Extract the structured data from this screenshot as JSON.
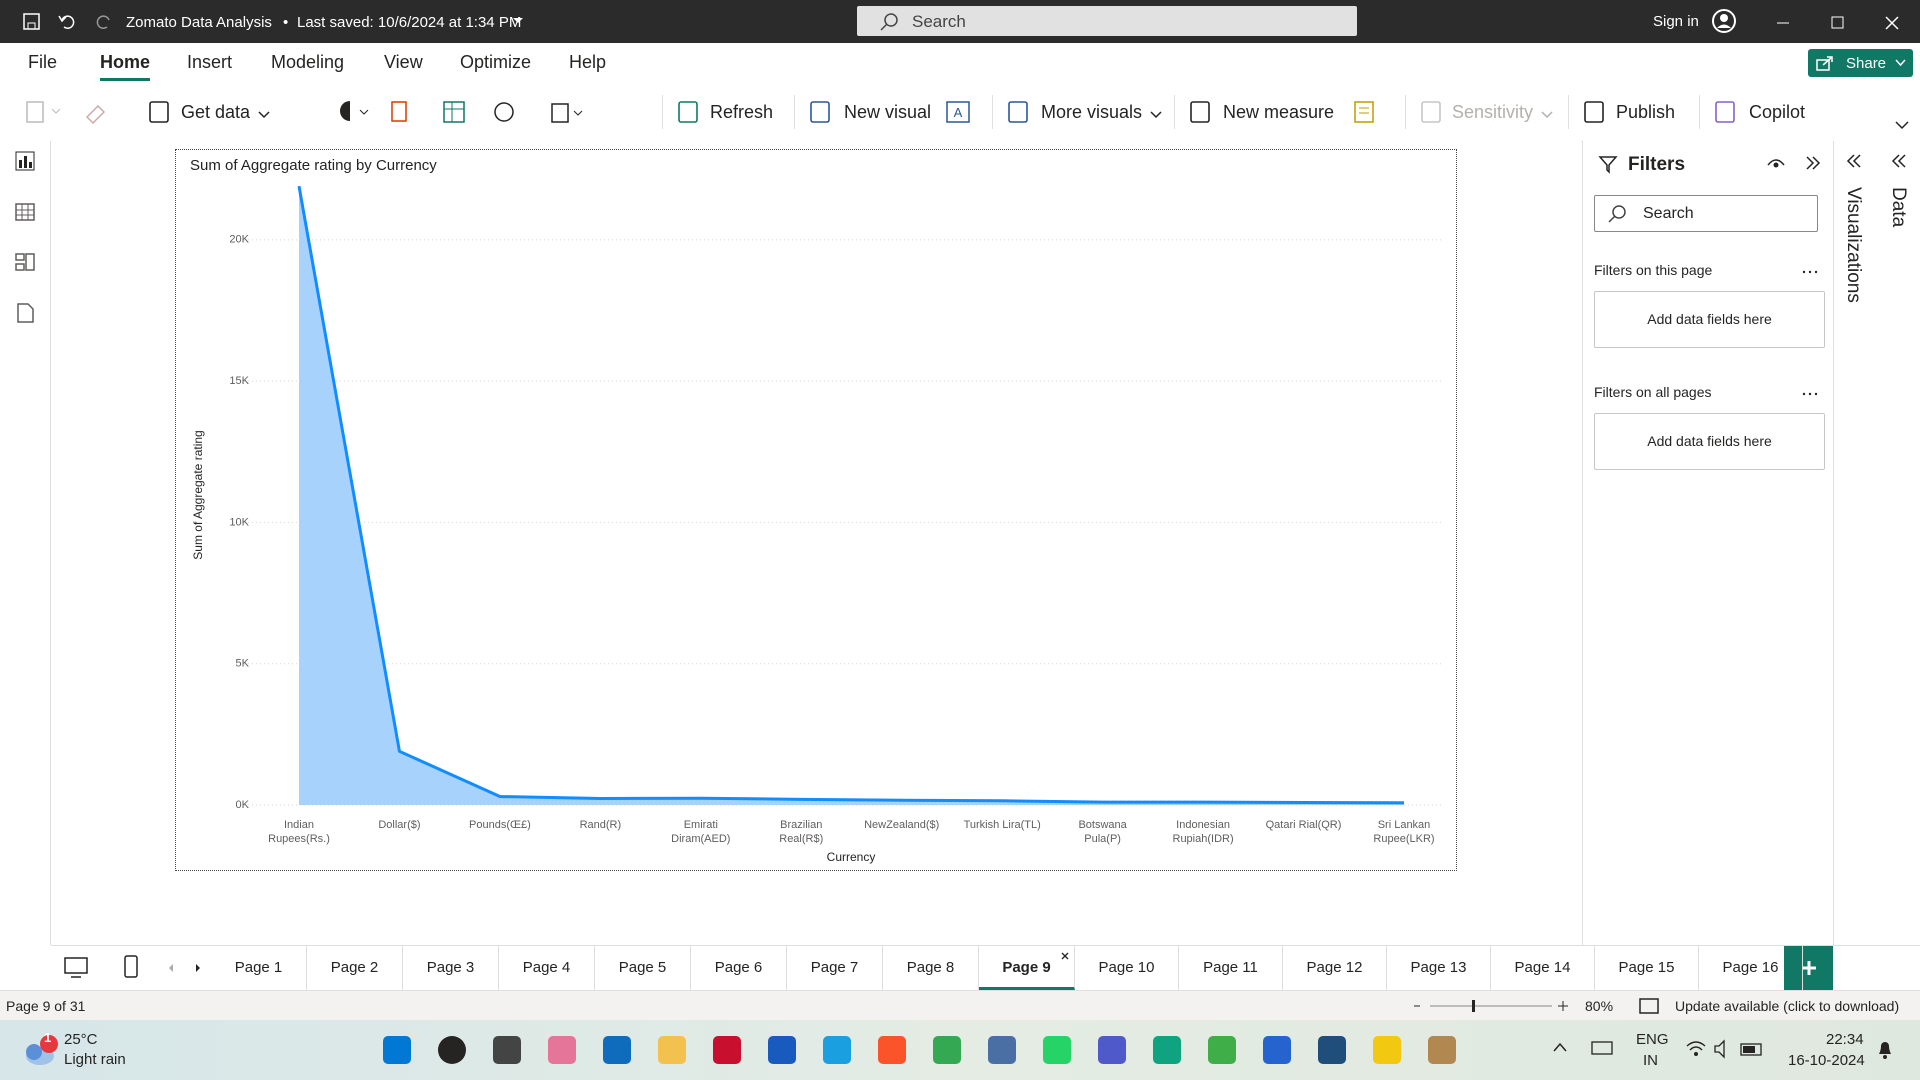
{
  "titlebar": {
    "file_name": "Zomato Data Analysis",
    "saved": "Last saved: 10/6/2024 at 1:34 PM",
    "search": "Search",
    "sign_in": "Sign in"
  },
  "menu": {
    "tabs": [
      "File",
      "Home",
      "Insert",
      "Modeling",
      "View",
      "Optimize",
      "Help"
    ],
    "active": 1,
    "share": "Share"
  },
  "ribbon": {
    "buttons": [
      "Get data",
      "Refresh",
      "New visual",
      "More visuals",
      "New measure",
      "Sensitivity",
      "Publish",
      "Copilot"
    ]
  },
  "chart_data": {
    "type": "area",
    "title": "Sum of Aggregate rating by Currency",
    "x_label": "Currency",
    "y_label": "Sum of Aggregate rating",
    "categories": [
      "Indian Rupees(Rs.)",
      "Dollar($)",
      "Pounds(Œ£)",
      "Rand(R)",
      "Emirati Diram(AED)",
      "Brazilian Real(R$)",
      "NewZealand($)",
      "Turkish Lira(TL)",
      "Botswana Pula(P)",
      "Indonesian Rupiah(IDR)",
      "Qatari Rial(QR)",
      "Sri Lankan Rupee(LKR)"
    ],
    "values": [
      21900,
      1900,
      300,
      230,
      240,
      200,
      170,
      150,
      100,
      100,
      90,
      80
    ],
    "color": "#118DFF",
    "area_color": "#A6D2FB",
    "ylim": [
      0,
      22400
    ],
    "yticks": [
      {
        "value": 0,
        "label": "0K"
      },
      {
        "value": 5000,
        "label": "5K"
      },
      {
        "value": 10000,
        "label": "10K"
      },
      {
        "value": 15000,
        "label": "15K"
      },
      {
        "value": 20000,
        "label": "20K"
      }
    ],
    "grid": true
  },
  "filters": {
    "title": "Filters",
    "search": "Search",
    "sections": [
      {
        "label": "Filters on this page",
        "placeholder": "Add data fields here"
      },
      {
        "label": "Filters on all pages",
        "placeholder": "Add data fields here"
      }
    ]
  },
  "side_panes": [
    "Visualizations",
    "Data"
  ],
  "pages": {
    "tabs": [
      "Page 1",
      "Page 2",
      "Page 3",
      "Page 4",
      "Page 5",
      "Page 6",
      "Page 7",
      "Page 8",
      "Page 9",
      "Page 10",
      "Page 11",
      "Page 12",
      "Page 13",
      "Page 14",
      "Page 15",
      "Page 16"
    ],
    "active": 8
  },
  "status": {
    "page": "Page 9 of 31",
    "zoom": "80%",
    "update": "Update available (click to download)"
  },
  "taskbar": {
    "badge": 1,
    "temperature": "25°C",
    "weather": "Light rain",
    "language": "ENG",
    "region": "IN",
    "time": "22:34",
    "date": "16-10-2024"
  }
}
